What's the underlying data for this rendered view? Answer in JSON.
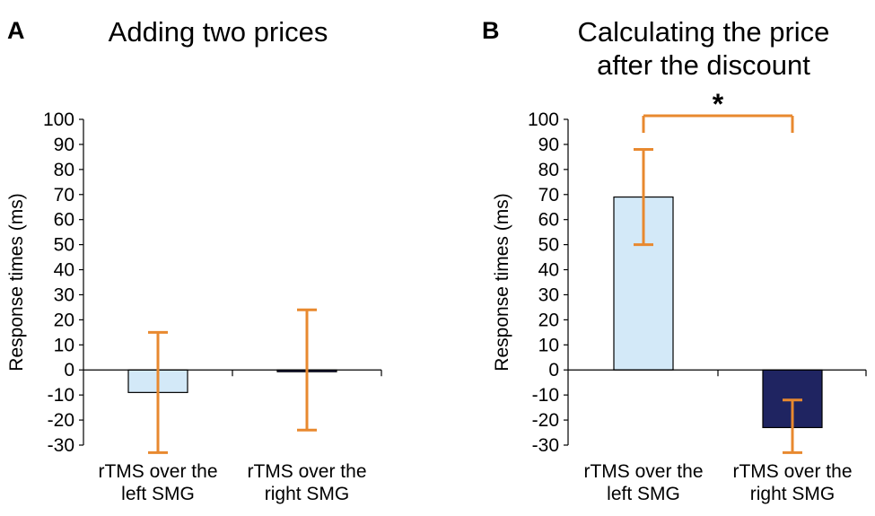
{
  "chart_data": [
    {
      "type": "bar",
      "panel_label": "A",
      "title": [
        "Adding two prices"
      ],
      "xlabel": "",
      "ylabel": "Response times (ms)",
      "ylim": [
        -30,
        100
      ],
      "yticks": [
        100,
        90,
        80,
        70,
        60,
        50,
        40,
        30,
        20,
        10,
        0,
        -10,
        -20,
        -30
      ],
      "categories": [
        [
          "rTMS over the",
          "left SMG"
        ],
        [
          "rTMS over the",
          "right SMG"
        ]
      ],
      "values": [
        -9,
        -0.5
      ],
      "error_high": [
        15,
        24
      ],
      "error_low": [
        -33,
        -24
      ],
      "bar_colors": [
        "#d3e9f8",
        "#1f2461"
      ],
      "error_color": "#e8892f",
      "grid": false
    },
    {
      "type": "bar",
      "panel_label": "B",
      "title": [
        "Calculating the price",
        "after the discount"
      ],
      "xlabel": "",
      "ylabel": "Response times (ms)",
      "ylim": [
        -30,
        100
      ],
      "yticks": [
        100,
        90,
        80,
        70,
        60,
        50,
        40,
        30,
        20,
        10,
        0,
        -10,
        -20,
        -30
      ],
      "categories": [
        [
          "rTMS over the",
          "left SMG"
        ],
        [
          "rTMS over the",
          "right SMG"
        ]
      ],
      "values": [
        69,
        -23
      ],
      "error_high": [
        88,
        -12
      ],
      "error_low": [
        50,
        -33
      ],
      "bar_colors": [
        "#d3e9f8",
        "#1f2461"
      ],
      "error_color": "#e8892f",
      "significance": {
        "marker": "*",
        "between": [
          0,
          1
        ],
        "level": 100
      },
      "grid": false
    }
  ]
}
